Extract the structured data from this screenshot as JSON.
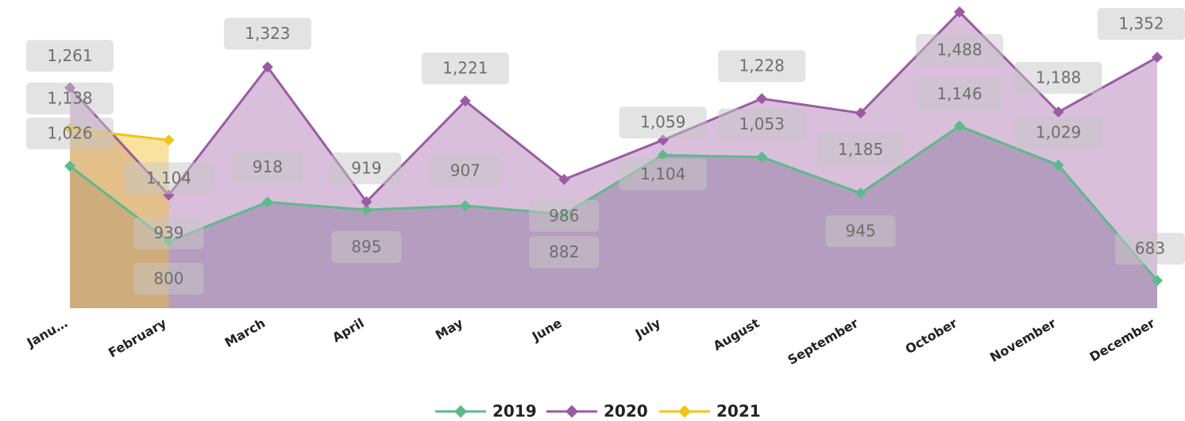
{
  "chart_data": {
    "type": "area",
    "categories": [
      "Janu…",
      "February",
      "March",
      "April",
      "May",
      "June",
      "July",
      "August",
      "September",
      "October",
      "November",
      "December"
    ],
    "series": [
      {
        "name": "2019",
        "color": "#5dba8c",
        "area_color": "rgba(120,130,150,0.45)",
        "values": [
          1026,
          800,
          918,
          895,
          907,
          882,
          1059,
          1053,
          945,
          1146,
          1029,
          683
        ],
        "value_labels": [
          "1,026",
          "800",
          "918",
          "895",
          "907",
          "882",
          "1,059",
          "1,053",
          "945",
          "1,146",
          "1,029",
          "683"
        ]
      },
      {
        "name": "2020",
        "color": "#9b5ba3",
        "area_color": "rgba(160,95,165,0.4)",
        "values": [
          1261,
          939,
          1323,
          919,
          1221,
          986,
          1104,
          1228,
          1185,
          1488,
          1188,
          1352
        ],
        "value_labels": [
          "1,261",
          "939",
          "1,323",
          "919",
          "1,221",
          "986",
          "1,104",
          "1,228",
          "1,185",
          "1,488",
          "1,188",
          "1,352"
        ]
      },
      {
        "name": "2021",
        "color": "#f2c416",
        "area_color": "rgba(240,190,40,0.45)",
        "values": [
          1138,
          1104,
          null,
          null,
          null,
          null,
          null,
          null,
          null,
          null,
          null,
          null
        ],
        "value_labels": [
          "1,138",
          "1,104",
          null,
          null,
          null,
          null,
          null,
          null,
          null,
          null,
          null,
          null
        ]
      }
    ],
    "ylim": [
      600,
      1500
    ],
    "grid": false,
    "legend": "bottom"
  }
}
